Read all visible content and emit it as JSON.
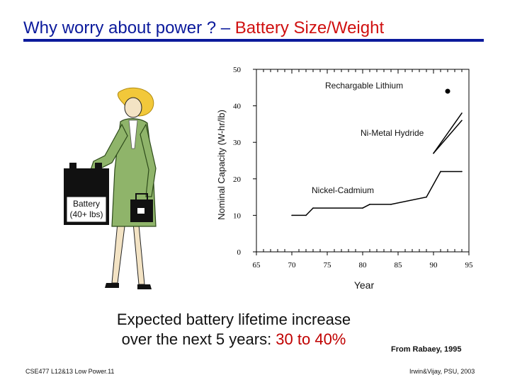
{
  "slide": {
    "title_main": "Why worry about power ? – ",
    "title_accent": "Battery Size/Weight",
    "caption_line1": "Expected battery lifetime increase",
    "caption_line2": "over the next 5 years: ",
    "caption_highlight": "30 to 40%",
    "source": "From Rabaey, 1995",
    "footer_left": "CSE477 L12&13 Low Power.11",
    "footer_right": "Irwin&Vijay, PSU, 2003"
  },
  "illustration": {
    "battery_label_line1": "Battery",
    "battery_label_line2": "(40+ lbs)"
  },
  "colors": {
    "title": "#0b1a9c",
    "accent": "#d01010",
    "highlight": "#c00000",
    "jacket": "#8fb46a",
    "hair": "#f2c83a"
  },
  "chart_data": {
    "type": "line",
    "title": "",
    "xlabel": "Year",
    "ylabel": "Nominal Capacity (W-hr/lb)",
    "xlim": [
      65,
      95
    ],
    "ylim": [
      0,
      50
    ],
    "x_ticks": [
      65,
      70,
      75,
      80,
      85,
      90,
      95
    ],
    "y_ticks": [
      0,
      10,
      20,
      30,
      40,
      50
    ],
    "grid": false,
    "series": [
      {
        "name": "Nickel-Cadmium",
        "x": [
          70,
          72,
          73,
          80,
          81,
          84,
          89,
          91,
          94
        ],
        "y": [
          10,
          10,
          12,
          12,
          13,
          13,
          15,
          22,
          22
        ]
      },
      {
        "name": "Ni-Metal Hydride",
        "x": [
          90,
          94
        ],
        "y": [
          27,
          36
        ]
      },
      {
        "name": "Ni-Metal Hydride",
        "x": [
          90,
          94
        ],
        "y": [
          27,
          38
        ]
      },
      {
        "name": "Rechargable Lithium",
        "x": [
          92
        ],
        "y": [
          44
        ]
      }
    ]
  }
}
